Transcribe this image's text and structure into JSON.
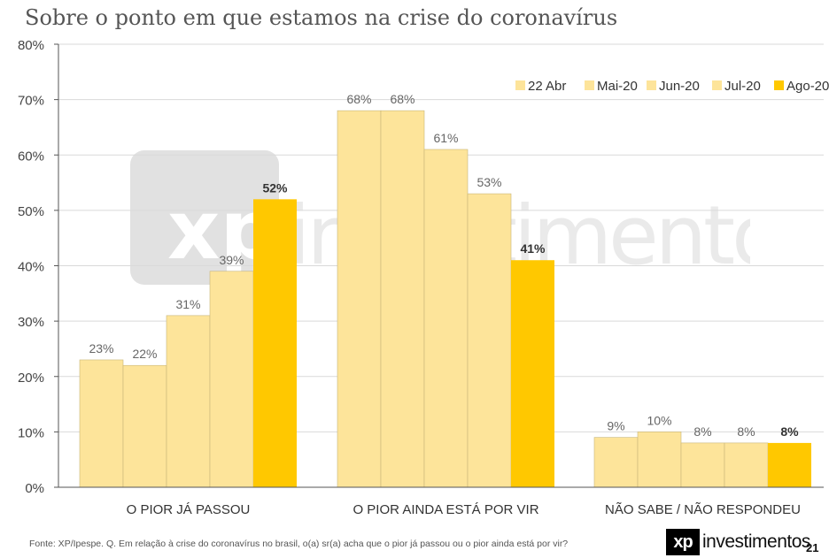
{
  "title": "Sobre o ponto em que estamos na crise do coronavírus",
  "source": "Fonte: XP/Ipespe. Q. Em relação à crise do coronavírus no brasil, o(a) sr(a) acha que o pior já passou ou o pior ainda está por vir?",
  "brand": {
    "logo_mark": "xp",
    "logo_word": "investimentos"
  },
  "watermark": {
    "mark": "xp",
    "word": "investimentos"
  },
  "page_number": "21",
  "colors": {
    "light_bar": "#FDE49A",
    "highlight_bar": "#FFC800",
    "axis": "#555555",
    "grid": "#d9d9d9"
  },
  "chart_data": {
    "type": "bar",
    "categories": [
      "O PIOR JÁ PASSOU",
      "O PIOR AINDA ESTÁ POR VIR",
      "NÃO SABE / NÃO RESPONDEU"
    ],
    "series": [
      {
        "name": "22 Abr",
        "values": [
          23,
          68,
          9
        ],
        "labels": [
          "23%",
          "68%",
          "9%"
        ]
      },
      {
        "name": "Mai-20",
        "values": [
          22,
          68,
          10
        ],
        "labels": [
          "22%",
          "68%",
          "10%"
        ]
      },
      {
        "name": "Jun-20",
        "values": [
          31,
          61,
          8
        ],
        "labels": [
          "31%",
          "61%",
          "8%"
        ]
      },
      {
        "name": "Jul-20",
        "values": [
          39,
          53,
          8
        ],
        "labels": [
          "39%",
          "53%",
          "8%"
        ]
      },
      {
        "name": "Ago-20",
        "values": [
          52,
          41,
          8
        ],
        "labels": [
          "52%",
          "41%",
          "8%"
        ]
      }
    ],
    "yticks": [
      "0%",
      "10%",
      "20%",
      "30%",
      "40%",
      "50%",
      "60%",
      "70%",
      "80%"
    ],
    "ylim": [
      0,
      80
    ],
    "legend_position": "top-right",
    "grid": true
  }
}
